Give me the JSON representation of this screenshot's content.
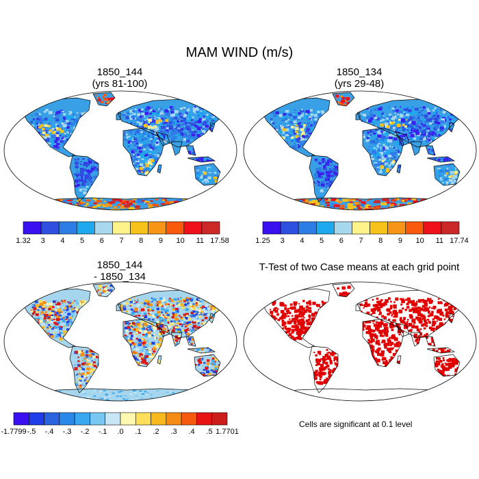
{
  "title": "MAM WIND (m/s)",
  "panels": [
    {
      "id": "top-left",
      "title_line1": "1850_144",
      "title_line2": "(yrs 81-100)",
      "colorbar": {
        "colors": [
          "#3a0ff0",
          "#2f4fe0",
          "#2e7de6",
          "#1ea8ee",
          "#a8d8ee",
          "#fdf38a",
          "#f7c21a",
          "#f79516",
          "#fb5a0c",
          "#f0101a",
          "#cc2828"
        ],
        "labels": [
          "1.32",
          "3",
          "4",
          "5",
          "6",
          "7",
          "8",
          "9",
          "10",
          "11",
          "17.58"
        ]
      }
    },
    {
      "id": "top-right",
      "title_line1": "1850_134",
      "title_line2": "(yrs 29-48)",
      "colorbar": {
        "colors": [
          "#3a0ff0",
          "#2f4fe0",
          "#2e7de6",
          "#1ea8ee",
          "#a8d8ee",
          "#fdf38a",
          "#f7c21a",
          "#f79516",
          "#fb5a0c",
          "#f0101a",
          "#cc2828"
        ],
        "labels": [
          "1.25",
          "3",
          "4",
          "5",
          "6",
          "7",
          "8",
          "9",
          "10",
          "11",
          "17.74"
        ]
      }
    },
    {
      "id": "bottom-left",
      "title_line1": "1850_144",
      "title_line2": "- 1850_134",
      "colorbar": {
        "colors": [
          "#3a0ff0",
          "#1f3de8",
          "#2a63e0",
          "#2a88e8",
          "#3aa8f0",
          "#78c6f2",
          "#c8e6f6",
          "#fdf7b0",
          "#fddf5a",
          "#f8b81e",
          "#f58c14",
          "#f55a0e",
          "#e81414",
          "#cc1c1c"
        ],
        "labels": [
          "-1.7799",
          "-.5",
          "-.4",
          "-.3",
          "-.2",
          "-.1",
          ".0",
          ".1",
          ".2",
          ".3",
          ".4",
          ".5",
          "1.7701"
        ]
      }
    },
    {
      "id": "bottom-right",
      "title_line1": "T-Test of two Case means at each grid point",
      "note": "Cells are significant at 0.1 level",
      "significance_color": "#e00000"
    }
  ],
  "map_palette": {
    "ocean": "#ffffff",
    "coastline": "#000000",
    "land_base_top": "#3aa0e6",
    "land_low_top": "#3a1ff0",
    "land_high_top": "#fdf08a",
    "land_extreme_top": "#f01a14",
    "land_base_diff": "#a6d6ee",
    "land_pos_diff": "#f7b81e",
    "land_neg_diff": "#2a5ee0"
  }
}
